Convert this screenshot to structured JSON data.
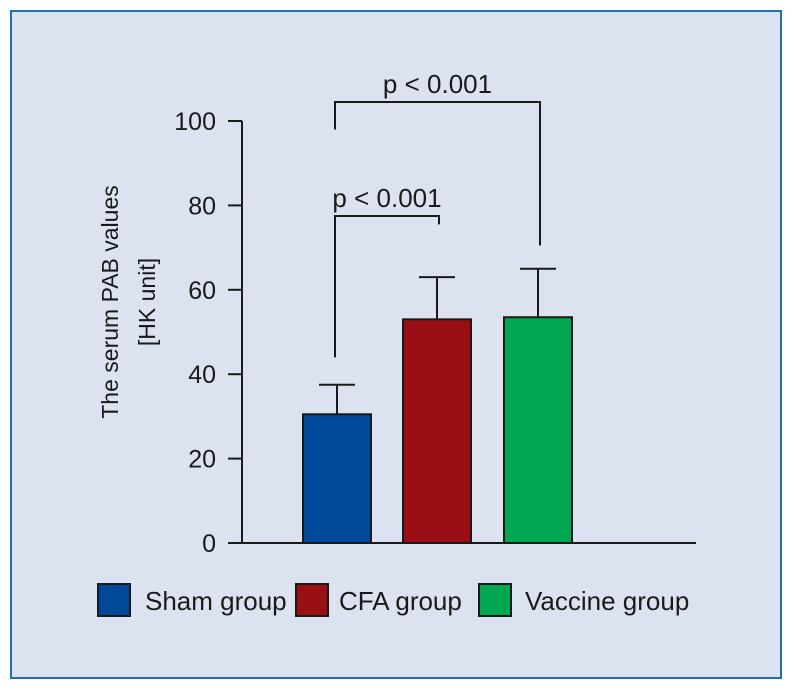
{
  "chart_data": {
    "type": "bar",
    "ylabel": [
      "The serum PAB values",
      "[HK unit]"
    ],
    "ylim": [
      0,
      100
    ],
    "yticks": [
      0,
      20,
      40,
      60,
      80,
      100
    ],
    "categories": [
      "Sham group",
      "CFA group",
      "Vaccine group"
    ],
    "values": [
      30.5,
      53,
      53.5
    ],
    "errors": [
      7,
      10,
      11.5
    ],
    "colors": [
      "#00489a",
      "#990f14",
      "#00a650"
    ],
    "annotations": [
      {
        "text": "p < 0.001",
        "from": 0,
        "to": 1
      },
      {
        "text": "p < 0.001",
        "from": 0,
        "to": 2
      }
    ],
    "legend": {
      "position": "bottom",
      "entries": [
        "Sham group",
        "CFA group",
        "Vaccine group"
      ]
    }
  }
}
